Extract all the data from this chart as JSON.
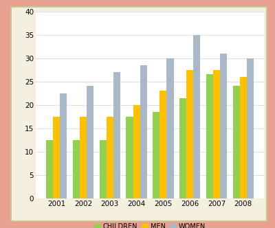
{
  "years": [
    "2001",
    "2002",
    "2003",
    "2004",
    "2005",
    "2006",
    "2007",
    "2008"
  ],
  "children": [
    12.5,
    12.5,
    12.5,
    17.5,
    18.5,
    21.5,
    26.5,
    24.0
  ],
  "men": [
    17.5,
    17.5,
    17.5,
    20.0,
    23.0,
    27.5,
    27.5,
    26.0
  ],
  "women": [
    22.5,
    24.0,
    27.0,
    28.5,
    30.0,
    35.0,
    31.0,
    30.0
  ],
  "colors": {
    "children": "#92D050",
    "men": "#FFC000",
    "women": "#A9B8C8"
  },
  "legend_labels": [
    "CHILDREN",
    "MEN",
    "WOMEN"
  ],
  "ylim": [
    0,
    40
  ],
  "yticks": [
    0,
    5,
    10,
    15,
    20,
    25,
    30,
    35,
    40
  ],
  "bar_width": 0.26,
  "outer_bg": "#E8A090",
  "inner_bg": "#F5EFE0",
  "plot_bg": "#FFFFFF",
  "grid_color": "#E0E0E0",
  "border_color": "#C8C890",
  "tick_fontsize": 7.5
}
